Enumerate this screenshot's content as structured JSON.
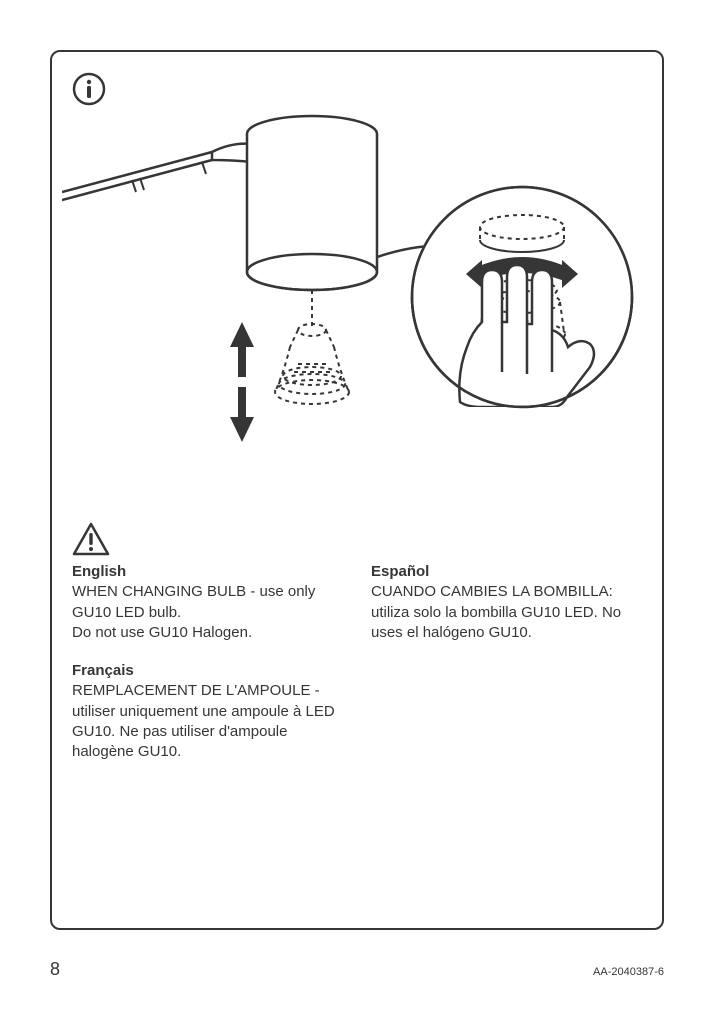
{
  "page": {
    "number": "8",
    "doc_id": "AA-2040387-6"
  },
  "icons": {
    "info": "info-icon",
    "warning": "warning-icon"
  },
  "diagram": {
    "type": "instruction-illustration",
    "stroke": "#363636",
    "stroke_width": 2.5,
    "dash": "4 4",
    "elements": [
      "lamp-arm",
      "lamp-head-cylinder",
      "bulb-dashed",
      "up-down-arrows",
      "callout-circle",
      "hand-twist-bulb",
      "twist-arrow"
    ]
  },
  "text": {
    "left_col": [
      {
        "lang": "English",
        "body": "WHEN CHANGING BULB - use only GU10 LED  bulb.\nDo not use GU10 Halogen."
      },
      {
        "lang": "Français",
        "body": "REMPLACEMENT DE L'AMPOULE - utiliser uniquement une ampoule à LED GU10. Ne pas utiliser d'ampoule halogène GU10."
      }
    ],
    "right_col": [
      {
        "lang": "Español",
        "body": "CUANDO CAMBIES LA BOMBILLA: utiliza solo la bombilla GU10 LED. No uses el halógeno GU10."
      }
    ]
  },
  "style": {
    "text_color": "#363636",
    "border_color": "#363636",
    "background": "#ffffff",
    "font_size_body": 15,
    "font_size_pagenum": 18,
    "font_size_docid": 11,
    "border_radius": 10
  }
}
